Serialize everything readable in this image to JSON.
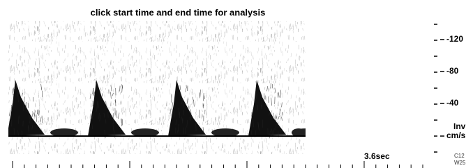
{
  "header": {
    "title": "click start time and end time for analysis"
  },
  "scale": {
    "labels": [
      "-120",
      "-80",
      "-40"
    ],
    "unit": "cm/s",
    "mode": "Inv"
  },
  "time_label": "3.6sec",
  "status": [
    "C12",
    "W25"
  ]
}
